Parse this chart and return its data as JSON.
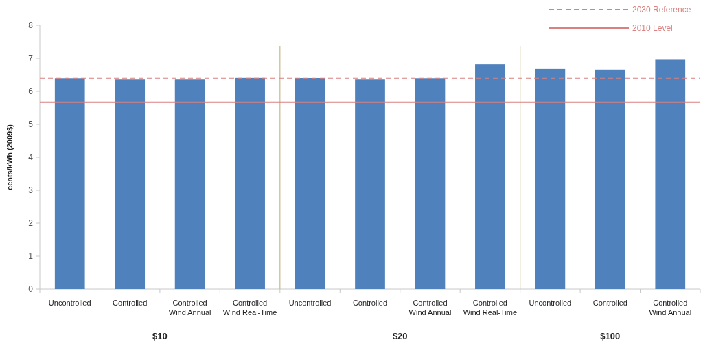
{
  "chart_data": {
    "type": "bar",
    "ylabel": "cents/kWh (2009$)",
    "categories": [
      "Uncontrolled",
      "Controlled",
      "Controlled Wind Annual",
      "Controlled Wind Real-Time",
      "Uncontrolled",
      "Controlled",
      "Controlled Wind Annual",
      "Controlled Wind Real-Time",
      "Uncontrolled",
      "Controlled",
      "Controlled Wind Annual"
    ],
    "values": [
      6.39,
      6.37,
      6.37,
      6.42,
      6.4,
      6.37,
      6.39,
      6.83,
      6.69,
      6.65,
      6.97
    ],
    "color": "#4f81bd",
    "ylim": [
      0,
      8
    ],
    "yticks": [
      0,
      1,
      2,
      3,
      4,
      5,
      6,
      7,
      8
    ],
    "grid": false,
    "legend": "top right",
    "ref_lines": [
      {
        "axis": "y",
        "value": 6.4,
        "label": "2030 Reference",
        "color": "#d98080",
        "line_style": "dashed"
      },
      {
        "axis": "y",
        "value": 5.67,
        "label": "2010 Level",
        "color": "#d98080",
        "line_style": "solid"
      }
    ],
    "annotations": [
      "$10",
      "$20",
      "$100"
    ]
  }
}
